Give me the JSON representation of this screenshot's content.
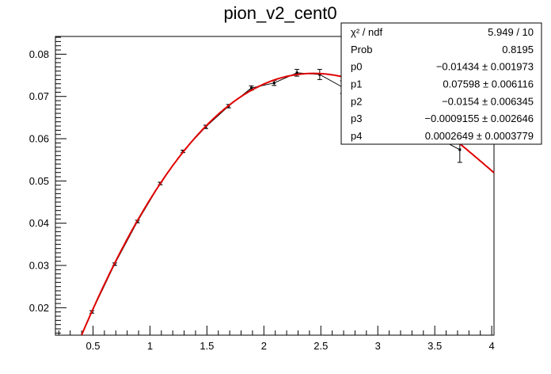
{
  "chart_data": {
    "type": "scatter",
    "title": "pion_v2_cent0",
    "xlabel": "",
    "ylabel": "",
    "xlim": [
      0.17,
      4.02
    ],
    "ylim": [
      0.0135,
      0.0842
    ],
    "x_ticks": [
      0.5,
      1,
      1.5,
      2,
      2.5,
      3,
      3.5,
      4
    ],
    "x_tick_labels": [
      "0.5",
      "1",
      "1.5",
      "2",
      "2.5",
      "3",
      "3.5",
      "4"
    ],
    "y_ticks": [
      0.02,
      0.03,
      0.04,
      0.05,
      0.06,
      0.07,
      0.08
    ],
    "y_tick_labels": [
      "0.02",
      "0.03",
      "0.04",
      "0.05",
      "0.06",
      "0.07",
      "0.08"
    ],
    "grid": false,
    "series": [
      {
        "points": [
          {
            "x": 0.49,
            "y": 0.019,
            "err": 0.0003
          },
          {
            "x": 0.69,
            "y": 0.0303,
            "err": 0.0003
          },
          {
            "x": 0.89,
            "y": 0.0404,
            "err": 0.0003
          },
          {
            "x": 1.09,
            "y": 0.0494,
            "err": 0.0003
          },
          {
            "x": 1.29,
            "y": 0.057,
            "err": 0.0003
          },
          {
            "x": 1.49,
            "y": 0.0628,
            "err": 0.0004
          },
          {
            "x": 1.69,
            "y": 0.0677,
            "err": 0.0004
          },
          {
            "x": 1.89,
            "y": 0.072,
            "err": 0.0005
          },
          {
            "x": 2.09,
            "y": 0.0732,
            "err": 0.0006
          },
          {
            "x": 2.29,
            "y": 0.0756,
            "err": 0.0008
          },
          {
            "x": 2.49,
            "y": 0.0752,
            "err": 0.0012
          },
          {
            "x": 2.69,
            "y": 0.0722,
            "err": 0.0015
          },
          {
            "x": 3.72,
            "y": 0.0574,
            "err": 0.003
          }
        ]
      },
      {
        "fit_params": {
          "p0": -0.01434,
          "p1": 0.07598,
          "p2": -0.0154,
          "p3": -0.0009155,
          "p4": 0.0002649
        },
        "x_range": [
          0.4,
          4.02
        ],
        "color": "#e00000"
      }
    ],
    "stats_box": {
      "position": "top-right",
      "rows": [
        {
          "label": "χ² / ndf",
          "value": "5.949 / 10"
        },
        {
          "label": "Prob",
          "value": "0.8195"
        },
        {
          "label": "p0",
          "value": "−0.01434 ± 0.001973"
        },
        {
          "label": "p1",
          "value": "0.07598 ± 0.006116"
        },
        {
          "label": "p2",
          "value": "−0.0154 ± 0.006345"
        },
        {
          "label": "p3",
          "value": "−0.0009155 ± 0.002646"
        },
        {
          "label": "p4",
          "value": "0.0002649 ± 0.0003779"
        }
      ]
    }
  },
  "colors": {
    "fit_line": "#e00000",
    "data": "#000000",
    "frame": "#000000",
    "background": "#ffffff"
  }
}
